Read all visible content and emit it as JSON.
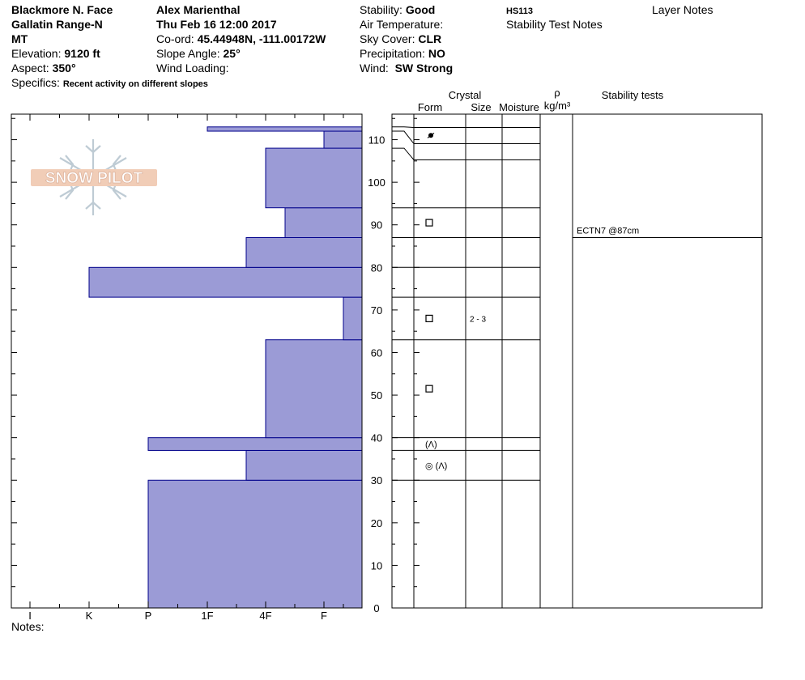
{
  "header": {
    "location": "Blackmore N. Face",
    "range": "Gallatin Range-N",
    "state": "MT",
    "elevation_label": "Elevation:",
    "elevation": "9120 ft",
    "aspect_label": "Aspect:",
    "aspect": "350°",
    "specifics_label": "Specifics:",
    "specifics": "Recent activity on different slopes",
    "observer": "Alex Marienthal",
    "datetime": "Thu Feb 16 12:00 2017",
    "coord_label": "Co-ord:",
    "coord": "45.44948N, -111.00172W",
    "slope_label": "Slope Angle:",
    "slope": "25°",
    "wind_loading_label": "Wind Loading:",
    "stability_label": "Stability:",
    "stability": "Good",
    "air_temp_label": "Air Temperature:",
    "sky_label": "Sky Cover:",
    "sky": "CLR",
    "precip_label": "Precipitation:",
    "precip": "NO",
    "wind_label": "Wind:",
    "wind": "SW Strong",
    "hs": "HS113",
    "stability_notes": "Stability Test Notes",
    "layer_notes": "Layer Notes"
  },
  "logo_text": "SNOW PILOT",
  "notes_label": "Notes:",
  "columns": {
    "crystal": "Crystal",
    "form": "Form",
    "size": "Size",
    "moisture": "Moisture",
    "rho": "ρ",
    "density_unit": "kg/m³",
    "stability_tests": "Stability tests"
  },
  "colors": {
    "bar_fill": "#9b9bd6",
    "bar_edge": "#00008b"
  },
  "chart_data": {
    "type": "bar",
    "orientation": "horizontal",
    "x_categories": [
      "I",
      "K",
      "P",
      "1F",
      "4F",
      "F"
    ],
    "y_ticks": [
      0,
      10,
      20,
      30,
      40,
      50,
      60,
      70,
      80,
      90,
      100,
      110
    ],
    "ylim": [
      0,
      116
    ],
    "hardness_layers": [
      {
        "bottom": 0,
        "top": 30,
        "hardness": "P"
      },
      {
        "bottom": 30,
        "top": 37,
        "hardness": "4F-"
      },
      {
        "bottom": 37,
        "top": 40,
        "hardness": "P"
      },
      {
        "bottom": 40,
        "top": 63,
        "hardness": "4F"
      },
      {
        "bottom": 63,
        "top": 73,
        "hardness": "F+"
      },
      {
        "bottom": 73,
        "top": 80,
        "hardness": "K"
      },
      {
        "bottom": 80,
        "top": 87,
        "hardness": "4F-"
      },
      {
        "bottom": 87,
        "top": 94,
        "hardness": "4F+"
      },
      {
        "bottom": 94,
        "top": 108,
        "hardness": "4F"
      },
      {
        "bottom": 108,
        "top": 112,
        "hardness": "F"
      },
      {
        "bottom": 112,
        "top": 113,
        "hardness": "1F"
      }
    ],
    "layer_boundaries": [
      30,
      37,
      40,
      63,
      73,
      80,
      87,
      94,
      108,
      112,
      113
    ],
    "crystal_forms": [
      {
        "height": 111,
        "symbol": "•"
      },
      {
        "height": 90.5,
        "symbol": "□"
      },
      {
        "height": 68,
        "symbol": "□",
        "size": "2 - 3"
      },
      {
        "height": 51.5,
        "symbol": "□"
      },
      {
        "height": 38.5,
        "symbol": "(Λ)"
      },
      {
        "height": 33.5,
        "symbol": "◎ (Λ)"
      }
    ],
    "stability_tests": [
      {
        "height": 87,
        "label": "ECTN7 @87cm"
      }
    ]
  }
}
